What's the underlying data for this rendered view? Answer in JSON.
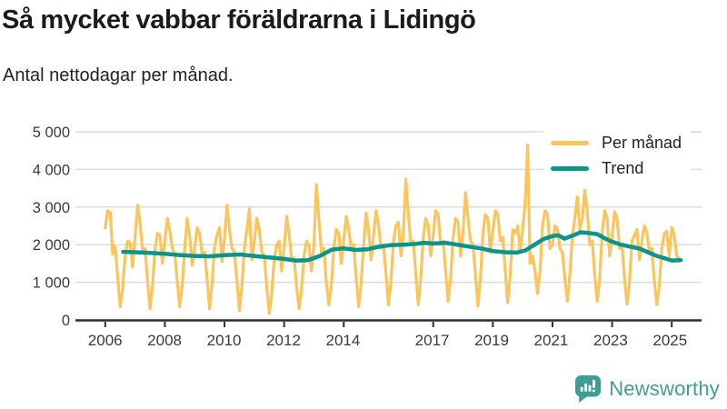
{
  "header": {
    "title": "Så mycket vabbar föräldrarna i Lidingö",
    "subtitle": "Antal nettodagar per månad."
  },
  "legend": [
    {
      "label": "Per månad",
      "color": "#FBC55C"
    },
    {
      "label": "Trend",
      "color": "#0B9489"
    }
  ],
  "footer": {
    "brand": "Newsworthy",
    "brand_color": "#3F9D95",
    "icon": "speech-bubble-bar-chart-icon"
  },
  "chart_data": {
    "type": "line",
    "title": "Så mycket vabbar föräldrarna i Lidingö",
    "subtitle": "Antal nettodagar per månad.",
    "xlabel": "",
    "ylabel": "",
    "grid": "horizontal",
    "grid_color": "#dcdcdc",
    "axis_color": "#2f2f2f",
    "legend_position": "top-right",
    "xlim": [
      2005,
      2026
    ],
    "ylim": [
      0,
      5000
    ],
    "x_ticks": [
      2006,
      2008,
      2010,
      2012,
      2014,
      2017,
      2019,
      2021,
      2023,
      2025
    ],
    "x_tick_labels": [
      "2006",
      "2008",
      "2010",
      "2012",
      "2014",
      "2017",
      "2019",
      "2021",
      "2023",
      "2025"
    ],
    "y_ticks": [
      0,
      1000,
      2000,
      3000,
      4000,
      5000
    ],
    "y_tick_labels": [
      "0",
      "1 000",
      "2 000",
      "3 000",
      "4 000",
      "5 000"
    ],
    "series": [
      {
        "name": "Per månad",
        "color": "#FBC55C",
        "width": 3.2,
        "x_start": 2006.0,
        "x_step": 0.0833333,
        "start_label": "2006-01",
        "interval": "month",
        "values": [
          2450,
          2900,
          2850,
          1750,
          1950,
          1150,
          350,
          800,
          1700,
          2100,
          2050,
          1400,
          2200,
          3050,
          2600,
          1850,
          1900,
          1050,
          300,
          900,
          1850,
          2300,
          2250,
          1500,
          2100,
          2700,
          2350,
          1900,
          1750,
          1000,
          350,
          950,
          1900,
          2700,
          2200,
          1450,
          1900,
          2450,
          2300,
          1750,
          1800,
          1100,
          300,
          1000,
          1950,
          2250,
          2450,
          1550,
          2150,
          3050,
          2400,
          1900,
          1800,
          1050,
          250,
          900,
          1900,
          2400,
          2950,
          1600,
          2100,
          2700,
          2400,
          1800,
          1700,
          900,
          170,
          700,
          1600,
          2000,
          2100,
          1300,
          1900,
          2750,
          2300,
          1600,
          1650,
          900,
          300,
          800,
          1700,
          2100,
          2000,
          1300,
          2000,
          3600,
          2700,
          1800,
          1900,
          1000,
          400,
          900,
          1900,
          2400,
          2300,
          1500,
          2150,
          2750,
          2400,
          1900,
          2000,
          1100,
          350,
          1000,
          2000,
          2850,
          2400,
          1600,
          2250,
          2900,
          2500,
          1900,
          2000,
          1200,
          400,
          1000,
          2100,
          2500,
          2600,
          1700,
          2300,
          3750,
          2800,
          2000,
          2100,
          1200,
          400,
          1100,
          2200,
          2700,
          2500,
          1700,
          2250,
          2900,
          2800,
          2000,
          2100,
          1300,
          490,
          1100,
          2200,
          2700,
          2600,
          1700,
          2300,
          3390,
          2700,
          2100,
          2000,
          1200,
          370,
          1100,
          2300,
          2800,
          2700,
          1800,
          2350,
          2900,
          2800,
          2100,
          2200,
          1300,
          460,
          1200,
          2400,
          2300,
          2500,
          1800,
          2400,
          3100,
          4650,
          1500,
          1700,
          1300,
          700,
          1300,
          2500,
          2900,
          2800,
          1900,
          2000,
          2500,
          2400,
          1900,
          1800,
          1100,
          500,
          1200,
          2200,
          2700,
          3270,
          2400,
          2700,
          3450,
          2900,
          2000,
          2100,
          1200,
          490,
          1100,
          2300,
          2900,
          2700,
          1700,
          2200,
          2880,
          2700,
          1900,
          2000,
          1100,
          420,
          1000,
          2100,
          2250,
          2400,
          1600,
          2100,
          2500,
          2340,
          1800,
          1900,
          1000,
          410,
          900,
          1900,
          2300,
          2350,
          1700,
          2460,
          2250,
          1700,
          1620
        ]
      },
      {
        "name": "Trend",
        "color": "#0B9489",
        "width": 4.5,
        "points": [
          [
            2006.6,
            1810
          ],
          [
            2007.0,
            1800
          ],
          [
            2007.5,
            1780
          ],
          [
            2008.0,
            1755
          ],
          [
            2008.5,
            1725
          ],
          [
            2009.0,
            1700
          ],
          [
            2009.5,
            1690
          ],
          [
            2010.0,
            1720
          ],
          [
            2010.5,
            1740
          ],
          [
            2011.0,
            1700
          ],
          [
            2011.5,
            1660
          ],
          [
            2012.0,
            1620
          ],
          [
            2012.4,
            1575
          ],
          [
            2012.8,
            1590
          ],
          [
            2013.2,
            1700
          ],
          [
            2013.6,
            1870
          ],
          [
            2014.0,
            1900
          ],
          [
            2014.4,
            1860
          ],
          [
            2014.8,
            1880
          ],
          [
            2015.2,
            1950
          ],
          [
            2015.6,
            1990
          ],
          [
            2016.0,
            2000
          ],
          [
            2016.4,
            2020
          ],
          [
            2016.7,
            2050
          ],
          [
            2017.0,
            2030
          ],
          [
            2017.4,
            2050
          ],
          [
            2017.8,
            2000
          ],
          [
            2018.2,
            1950
          ],
          [
            2018.6,
            1900
          ],
          [
            2019.0,
            1830
          ],
          [
            2019.4,
            1800
          ],
          [
            2019.8,
            1790
          ],
          [
            2020.1,
            1850
          ],
          [
            2020.4,
            2000
          ],
          [
            2020.7,
            2150
          ],
          [
            2021.0,
            2230
          ],
          [
            2021.2,
            2250
          ],
          [
            2021.4,
            2160
          ],
          [
            2021.7,
            2250
          ],
          [
            2021.95,
            2330
          ],
          [
            2022.2,
            2310
          ],
          [
            2022.5,
            2280
          ],
          [
            2022.8,
            2150
          ],
          [
            2023.0,
            2080
          ],
          [
            2023.3,
            2000
          ],
          [
            2023.6,
            1950
          ],
          [
            2023.9,
            1900
          ],
          [
            2024.2,
            1800
          ],
          [
            2024.5,
            1700
          ],
          [
            2024.8,
            1630
          ],
          [
            2025.0,
            1580
          ],
          [
            2025.3,
            1590
          ]
        ]
      }
    ]
  }
}
